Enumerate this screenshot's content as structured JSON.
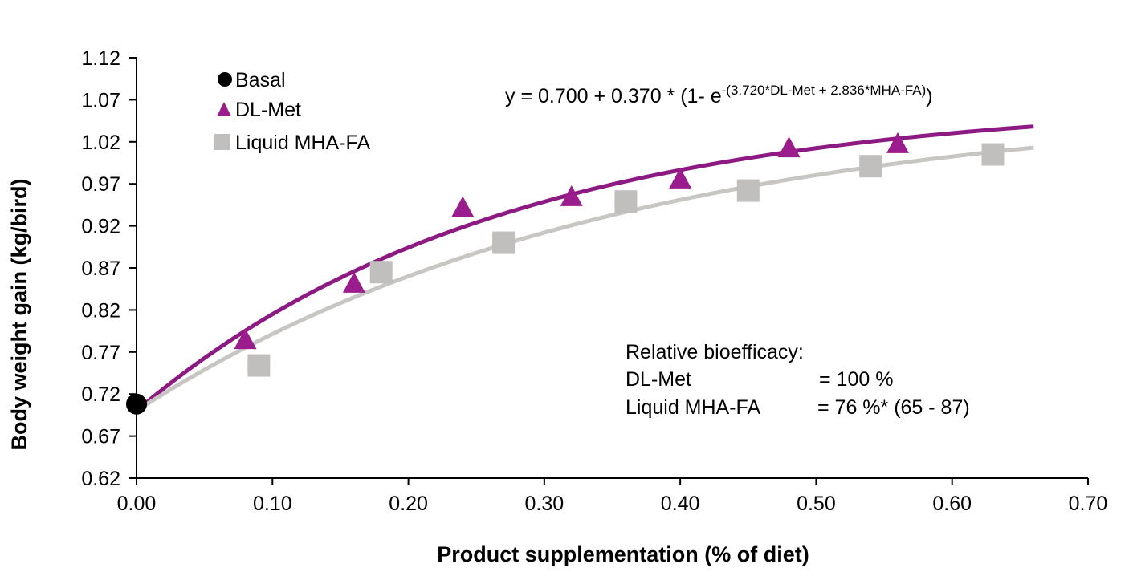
{
  "chart_data": {
    "type": "scatter",
    "xlabel": "Product supplementation (% of diet)",
    "ylabel": "Body weight gain (kg/bird)",
    "xlim": [
      0,
      0.7
    ],
    "ylim": [
      0.62,
      1.12
    ],
    "x_ticks": [
      "0.00",
      "0.10",
      "0.20",
      "0.30",
      "0.40",
      "0.50",
      "0.60",
      "0.70"
    ],
    "y_ticks": [
      "0.62",
      "0.67",
      "0.72",
      "0.77",
      "0.82",
      "0.87",
      "0.92",
      "0.97",
      "1.02",
      "1.07",
      "1.12"
    ],
    "grid": false,
    "legend_position": "top-left",
    "series": [
      {
        "name": "Basal",
        "marker": "circle",
        "color": "#000000",
        "x": [
          0.0
        ],
        "y": [
          0.708
        ]
      },
      {
        "name": "DL-Met",
        "marker": "triangle",
        "color": "#9b1c8c",
        "x": [
          0.08,
          0.16,
          0.24,
          0.32,
          0.4,
          0.48,
          0.56
        ],
        "y": [
          0.785,
          0.852,
          0.942,
          0.955,
          0.976,
          1.013,
          1.018
        ]
      },
      {
        "name": "Liquid MHA-FA",
        "marker": "square",
        "color": "#c0bfbd",
        "x": [
          0.09,
          0.18,
          0.27,
          0.36,
          0.45,
          0.54,
          0.63
        ],
        "y": [
          0.754,
          0.865,
          0.9,
          0.949,
          0.962,
          0.991,
          1.005
        ]
      }
    ],
    "fit_curves": [
      {
        "series": "DL-Met",
        "color": "#8c1a82",
        "a": 0.7,
        "b": 0.37,
        "k": 3.72,
        "x_range": [
          0,
          0.66
        ]
      },
      {
        "series": "Liquid MHA-FA",
        "color": "#c7c6c3",
        "a": 0.7,
        "b": 0.37,
        "k": 2.836,
        "x_range": [
          0,
          0.66
        ]
      }
    ],
    "equation": {
      "main": "y = 0.700 + 0.370 * (1- e",
      "exponent": "-(3.720*DL-Met + 2.836*MHA-FA)",
      "close": ")"
    },
    "annotation": {
      "title": "Relative bioefficacy:",
      "rows": [
        {
          "label": "DL-Met",
          "value": "= 100 %"
        },
        {
          "label": "Liquid MHA-FA",
          "value": "=  76 %* (65 - 87)"
        }
      ]
    }
  }
}
